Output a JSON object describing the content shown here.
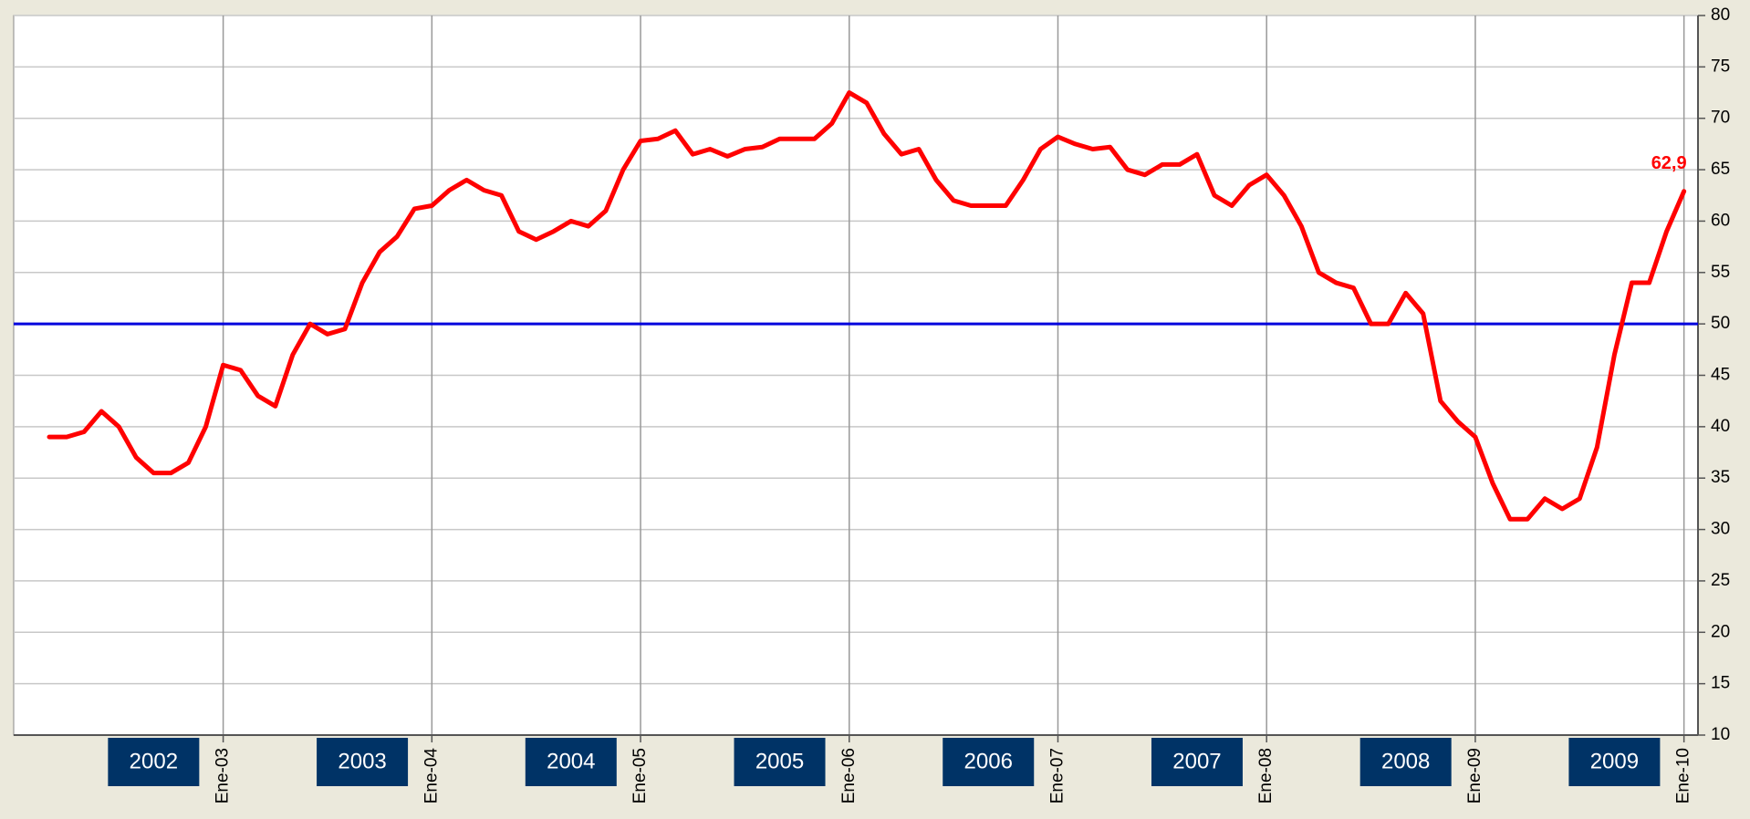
{
  "chart_data": {
    "type": "line",
    "categories": [
      null,
      null,
      null,
      null,
      null,
      null,
      null,
      null,
      null,
      null,
      "Ene-03",
      null,
      null,
      null,
      null,
      null,
      null,
      null,
      null,
      null,
      null,
      null,
      "Ene-04",
      null,
      null,
      null,
      null,
      null,
      null,
      null,
      null,
      null,
      null,
      null,
      "Ene-05",
      null,
      null,
      null,
      null,
      null,
      null,
      null,
      null,
      null,
      null,
      null,
      "Ene-06",
      null,
      null,
      null,
      null,
      null,
      null,
      null,
      null,
      null,
      null,
      null,
      "Ene-07",
      null,
      null,
      null,
      null,
      null,
      null,
      null,
      null,
      null,
      null,
      null,
      "Ene-08",
      null,
      null,
      null,
      null,
      null,
      null,
      null,
      null,
      null,
      null,
      null,
      "Ene-09",
      null,
      null,
      null,
      null,
      null,
      null,
      null,
      null,
      null,
      null,
      null,
      "Ene-10"
    ],
    "series": [
      {
        "color": "#ff0000",
        "values": [
          39,
          39,
          39.5,
          41.5,
          40,
          37,
          35.5,
          35.5,
          36.5,
          40,
          46,
          45.5,
          43,
          42,
          47,
          50,
          49,
          49.5,
          54,
          57,
          58.5,
          61.2,
          61.5,
          63,
          64,
          63,
          62.5,
          59,
          58.2,
          59,
          60,
          59.5,
          61,
          65,
          67.8,
          68,
          68.8,
          66.5,
          67,
          66.3,
          67,
          67.2,
          68,
          68,
          68,
          69.5,
          72.5,
          71.5,
          68.5,
          66.5,
          67,
          64,
          62,
          61.5,
          61.5,
          61.5,
          64,
          67,
          68.2,
          67.5,
          67,
          67.2,
          65,
          64.5,
          65.5,
          65.5,
          66.5,
          62.5,
          61.5,
          63.5,
          64.5,
          62.5,
          59.5,
          55,
          54,
          53.5,
          50,
          50,
          53,
          51,
          42.5,
          40.5,
          39,
          34.5,
          31,
          31,
          33,
          32,
          33,
          38,
          47,
          54,
          54,
          59,
          62.9
        ],
        "value_labels": [
          null,
          null,
          null,
          null,
          null,
          null,
          null,
          null,
          null,
          null,
          null,
          null,
          null,
          null,
          null,
          null,
          null,
          null,
          null,
          null,
          null,
          null,
          null,
          null,
          null,
          null,
          null,
          null,
          null,
          null,
          null,
          null,
          null,
          null,
          null,
          null,
          null,
          null,
          null,
          null,
          null,
          null,
          null,
          null,
          null,
          null,
          null,
          null,
          null,
          null,
          null,
          null,
          null,
          null,
          null,
          null,
          null,
          null,
          null,
          null,
          null,
          null,
          null,
          null,
          null,
          null,
          null,
          null,
          null,
          null,
          null,
          null,
          null,
          null,
          null,
          null,
          null,
          null,
          null,
          null,
          null,
          null,
          null,
          null,
          null,
          null,
          null,
          null,
          null,
          null,
          null,
          null,
          null,
          null,
          "62,9"
        ]
      }
    ],
    "reference_line": {
      "value": 50,
      "color": "#0000dd"
    },
    "year_labels": [
      "2002",
      "2003",
      "2004",
      "2005",
      "2006",
      "2007",
      "2008",
      "2009"
    ],
    "ylim": [
      10,
      80
    ],
    "yticks": [
      10,
      15,
      20,
      25,
      30,
      35,
      40,
      45,
      50,
      55,
      60,
      65,
      70,
      75,
      80
    ],
    "y_axis_side": "right",
    "grid": true
  }
}
